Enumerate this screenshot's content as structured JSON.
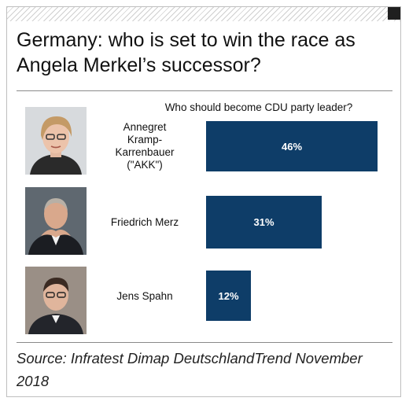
{
  "title": "Germany: who is set to win the race as Angela Merkel’s successor?",
  "source": "Source: Infratest Dimap DeutschlandTrend November 2018",
  "colors": {
    "bar": "#0e3d68",
    "bar_label": "#ffffff",
    "rule": "#8a8a8a"
  },
  "chart_data": {
    "type": "bar",
    "orientation": "horizontal",
    "title": "Who should become CDU party leader?",
    "categories": [
      "Annegret Kramp-Karrenbauer (\"AKK\")",
      "Friedrich Merz",
      "Jens Spahn"
    ],
    "values": [
      46,
      31,
      12
    ],
    "value_labels": [
      "46%",
      "31%",
      "12%"
    ],
    "unit": "%",
    "xlim": [
      0,
      100
    ],
    "grid": false,
    "legend": "none"
  },
  "rows": [
    {
      "name": "Annegret\nKramp-\nKarrenbauer\n(\"AKK\")",
      "photo": "portrait-woman-short-blond-hair"
    },
    {
      "name": "Friedrich Merz",
      "photo": "portrait-man-dark-suit"
    },
    {
      "name": "Jens Spahn",
      "photo": "portrait-man-dark-hair"
    }
  ]
}
